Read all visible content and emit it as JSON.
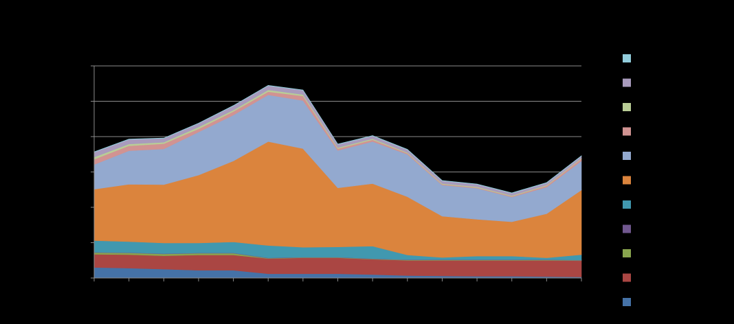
{
  "chart_data": {
    "type": "area",
    "stacked": true,
    "title": "",
    "xlabel": "",
    "ylabel": "",
    "ylim": [
      0,
      6
    ],
    "y_gridlines": [
      0,
      1,
      2,
      3,
      4,
      5,
      6
    ],
    "grid": "horizontal",
    "legend_placement": "right",
    "x": [
      0,
      1,
      2,
      3,
      4,
      5,
      6,
      7,
      8,
      9,
      10,
      11,
      12,
      13,
      14
    ],
    "series": [
      {
        "color": "#4572a7",
        "values": [
          0.3,
          0.28,
          0.25,
          0.22,
          0.22,
          0.12,
          0.12,
          0.12,
          0.1,
          0.07,
          0.06,
          0.05,
          0.05,
          0.04,
          0.03
        ]
      },
      {
        "color": "#aa4643",
        "values": [
          0.37,
          0.38,
          0.38,
          0.43,
          0.43,
          0.43,
          0.45,
          0.45,
          0.43,
          0.43,
          0.44,
          0.45,
          0.45,
          0.46,
          0.46
        ]
      },
      {
        "color": "#89a54e",
        "values": [
          0.05,
          0.05,
          0.05,
          0.05,
          0.05,
          0.01,
          0.01,
          0.01,
          0.01,
          0.01,
          0.01,
          0.01,
          0.01,
          0.01,
          0.01
        ]
      },
      {
        "color": "#71588f",
        "values": [
          0.01,
          0.01,
          0.01,
          0.01,
          0.01,
          0.01,
          0.01,
          0.01,
          0.01,
          0.01,
          0.01,
          0.01,
          0.01,
          0.01,
          0.01
        ]
      },
      {
        "color": "#4198af",
        "values": [
          0.33,
          0.31,
          0.3,
          0.28,
          0.31,
          0.35,
          0.28,
          0.29,
          0.35,
          0.13,
          0.06,
          0.1,
          0.1,
          0.05,
          0.15
        ]
      },
      {
        "color": "#db843d",
        "values": [
          1.45,
          1.62,
          1.65,
          1.92,
          2.29,
          2.94,
          2.79,
          1.67,
          1.77,
          1.65,
          1.17,
          1.04,
          0.97,
          1.25,
          1.83
        ]
      },
      {
        "color": "#93a9cf",
        "values": [
          0.7,
          0.95,
          1.01,
          1.22,
          1.3,
          1.32,
          1.36,
          1.06,
          1.19,
          1.2,
          0.88,
          0.88,
          0.7,
          0.75,
          0.82
        ]
      },
      {
        "color": "#d19392",
        "values": [
          0.15,
          0.14,
          0.15,
          0.09,
          0.1,
          0.09,
          0.13,
          0.05,
          0.05,
          0.03,
          0.02,
          0.02,
          0.02,
          0.04,
          0.06
        ]
      },
      {
        "color": "#b9cd96",
        "values": [
          0.06,
          0.05,
          0.04,
          0.05,
          0.04,
          0.05,
          0.04,
          0.03,
          0.03,
          0.02,
          0.02,
          0.02,
          0.02,
          0.02,
          0.02
        ]
      },
      {
        "color": "#a99bbd",
        "values": [
          0.14,
          0.13,
          0.11,
          0.1,
          0.12,
          0.12,
          0.12,
          0.09,
          0.08,
          0.08,
          0.08,
          0.07,
          0.07,
          0.06,
          0.06
        ]
      },
      {
        "color": "#92cddc",
        "values": [
          0.01,
          0.01,
          0.01,
          0.01,
          0.01,
          0.01,
          0.01,
          0.01,
          0.01,
          0.01,
          0.01,
          0.01,
          0.01,
          0.01,
          0.01
        ]
      }
    ]
  }
}
